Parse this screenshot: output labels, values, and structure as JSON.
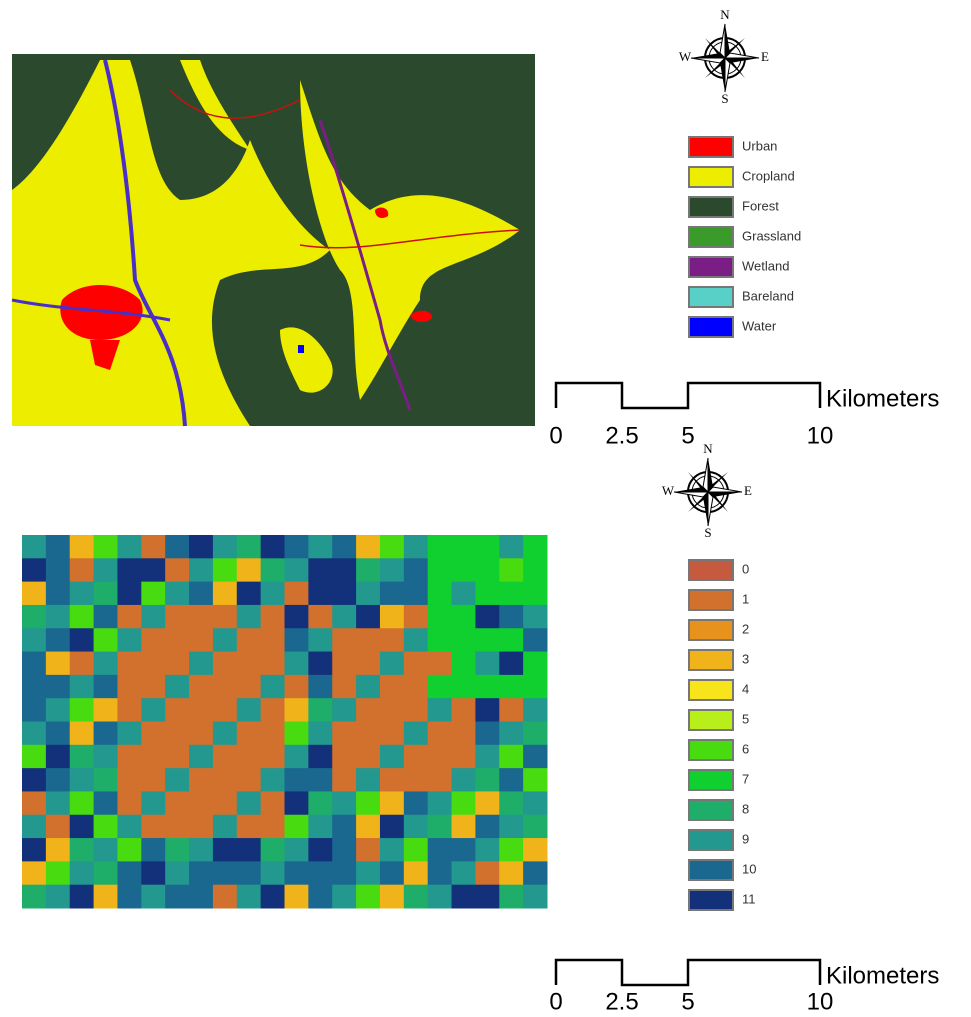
{
  "maps": [
    {
      "compass": {
        "n": "N",
        "e": "E",
        "s": "S",
        "w": "W"
      },
      "legend": [
        {
          "label": "Urban",
          "color": "#ff0000"
        },
        {
          "label": "Cropland",
          "color": "#eded00"
        },
        {
          "label": "Forest",
          "color": "#2b4a2d"
        },
        {
          "label": "Grassland",
          "color": "#3a9a2a"
        },
        {
          "label": "Wetland",
          "color": "#7a1e86"
        },
        {
          "label": "Bareland",
          "color": "#58d0c8"
        },
        {
          "label": "Water",
          "color": "#0000ff"
        }
      ],
      "scale_bar": {
        "ticks": [
          0,
          2.5,
          5,
          10
        ],
        "unit": "Kilometers"
      }
    },
    {
      "compass": {
        "n": "N",
        "e": "E",
        "s": "S",
        "w": "W"
      },
      "legend": [
        {
          "label": "0",
          "color": "#c65a3e"
        },
        {
          "label": "1",
          "color": "#d2702e"
        },
        {
          "label": "2",
          "color": "#e8921e"
        },
        {
          "label": "3",
          "color": "#f0b41a"
        },
        {
          "label": "4",
          "color": "#f8e41a"
        },
        {
          "label": "5",
          "color": "#b8ee1a"
        },
        {
          "label": "6",
          "color": "#48dc10"
        },
        {
          "label": "7",
          "color": "#10d030"
        },
        {
          "label": "8",
          "color": "#1eae6a"
        },
        {
          "label": "9",
          "color": "#22988e"
        },
        {
          "label": "10",
          "color": "#1a6890"
        },
        {
          "label": "11",
          "color": "#13307a"
        }
      ],
      "scale_bar": {
        "ticks": [
          0,
          2.5,
          5,
          10
        ],
        "unit": "Kilometers"
      }
    }
  ]
}
